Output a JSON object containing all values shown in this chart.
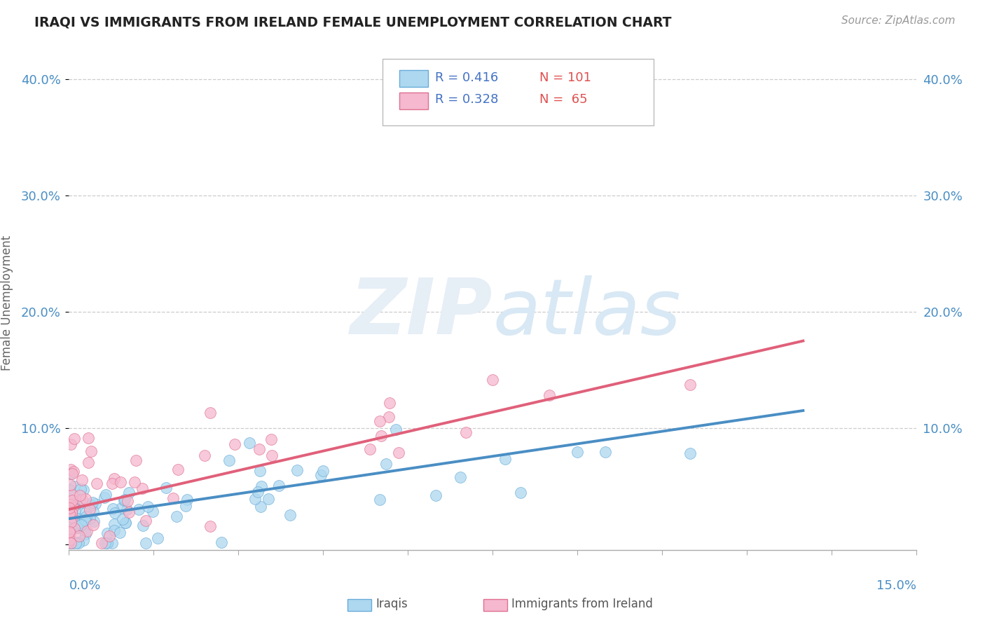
{
  "title": "IRAQI VS IMMIGRANTS FROM IRELAND FEMALE UNEMPLOYMENT CORRELATION CHART",
  "source": "Source: ZipAtlas.com",
  "ylabel": "Female Unemployment",
  "xlim": [
    0.0,
    0.15
  ],
  "ylim": [
    -0.005,
    0.42
  ],
  "ytick_vals": [
    0.0,
    0.1,
    0.2,
    0.3,
    0.4
  ],
  "ytick_labels": [
    "",
    "10.0%",
    "20.0%",
    "30.0%",
    "40.0%"
  ],
  "legend_r1": "R = 0.416",
  "legend_n1": "N = 101",
  "legend_r2": "R = 0.328",
  "legend_n2": "N =  65",
  "color_blue_fill": "#ADD8F0",
  "color_blue_edge": "#6AABD8",
  "color_blue_line": "#4A8EC4",
  "color_pink_fill": "#F5B8CE",
  "color_pink_edge": "#E07090",
  "color_pink_line": "#E0607A",
  "color_legend_text": "#4472C4",
  "color_n_text": "#E05050",
  "background_color": "#FFFFFF",
  "watermark_color": "#E6EEF6",
  "grid_color": "#CCCCCC",
  "iraq_line_x0": 0.0,
  "iraq_line_y0": 0.022,
  "iraq_line_x1": 0.13,
  "iraq_line_y1": 0.115,
  "ire_line_x0": 0.0,
  "ire_line_y0": 0.03,
  "ire_line_x1": 0.13,
  "ire_line_y1": 0.175
}
